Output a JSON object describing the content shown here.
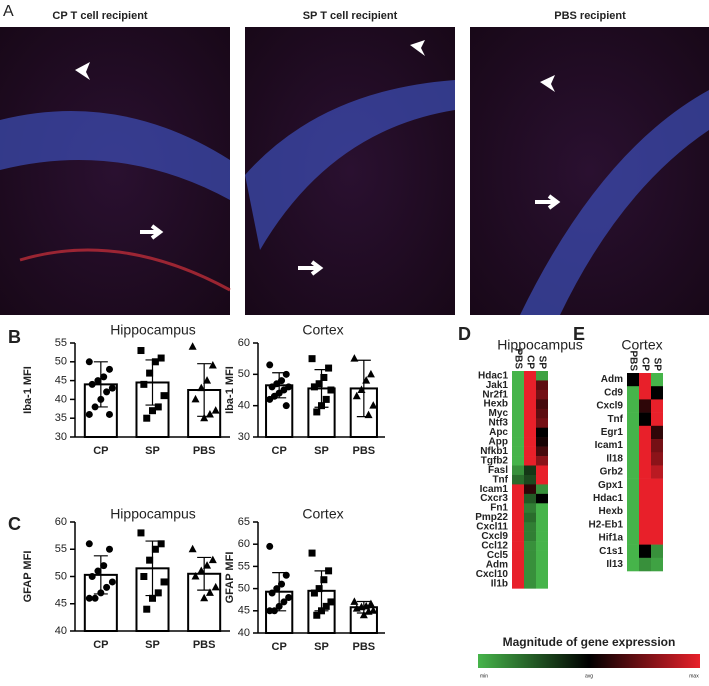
{
  "panel_labels": [
    "A",
    "B",
    "C",
    "D",
    "E"
  ],
  "images": [
    {
      "title": "CP T cell recipient"
    },
    {
      "title": "SP T cell recipient"
    },
    {
      "title": "PBS recipient"
    }
  ],
  "colorbar": {
    "title": "Magnitude of gene expression",
    "labels": [
      "min",
      "avg",
      "max"
    ]
  },
  "chart_data": [
    {
      "type": "bar",
      "title": "Hippocampus",
      "ylabel": "Iba-1 MFI",
      "categories": [
        "CP",
        "SP",
        "PBS"
      ],
      "values": [
        44,
        44.5,
        42.5
      ],
      "errors": [
        6,
        6,
        7
      ],
      "points": [
        [
          50,
          48,
          46,
          45,
          44,
          43,
          42,
          40,
          38,
          36,
          36
        ],
        [
          53,
          51,
          50,
          47,
          44,
          41,
          38,
          37,
          35
        ],
        [
          54,
          49,
          45,
          43,
          40,
          37,
          36,
          35
        ]
      ],
      "ylim": [
        30,
        55
      ],
      "yticks": [
        30,
        35,
        40,
        45,
        50,
        55
      ]
    },
    {
      "type": "bar",
      "title": "Cortex",
      "ylabel": "Iba-1 MFI",
      "categories": [
        "CP",
        "SP",
        "PBS"
      ],
      "values": [
        46.5,
        45.5,
        45.5
      ],
      "errors": [
        4,
        6,
        9
      ],
      "points": [
        [
          53,
          50,
          48,
          47,
          46,
          46,
          45,
          44,
          43,
          42,
          40
        ],
        [
          55,
          52,
          49,
          47,
          46,
          45,
          42,
          40,
          38
        ],
        [
          55,
          50,
          48,
          45,
          43,
          40,
          37
        ]
      ],
      "ylim": [
        30,
        60
      ],
      "yticks": [
        30,
        40,
        50,
        60
      ]
    },
    {
      "type": "bar",
      "title": "Hippocampus",
      "ylabel": "GFAP MFI",
      "categories": [
        "CP",
        "SP",
        "PBS"
      ],
      "values": [
        50.3,
        51.5,
        50.5
      ],
      "errors": [
        3.5,
        5,
        3
      ],
      "points": [
        [
          56,
          55,
          52,
          51,
          50,
          49,
          48,
          47,
          46,
          46
        ],
        [
          58,
          56,
          55,
          53,
          50,
          49,
          47,
          46,
          44
        ],
        [
          55,
          53,
          52,
          51,
          50,
          48,
          47,
          46
        ]
      ],
      "ylim": [
        40,
        60
      ],
      "yticks": [
        40,
        45,
        50,
        55,
        60
      ]
    },
    {
      "type": "bar",
      "title": "Cortex",
      "ylabel": "GFAP MFI",
      "categories": [
        "CP",
        "SP",
        "PBS"
      ],
      "values": [
        49.3,
        49.5,
        45.8
      ],
      "errors": [
        4.3,
        4.5,
        1.3
      ],
      "points": [
        [
          59.5,
          53,
          51,
          50,
          49,
          48,
          47,
          46,
          45,
          45
        ],
        [
          58,
          54,
          52,
          50,
          49,
          47,
          46,
          45,
          44
        ],
        [
          47,
          46.5,
          46,
          45.8,
          45.5,
          45,
          44.8,
          44
        ]
      ],
      "ylim": [
        40,
        65
      ],
      "yticks": [
        40,
        45,
        50,
        55,
        60,
        65
      ]
    },
    {
      "type": "heatmap",
      "title": "Hippocampus",
      "columns": [
        "PBS",
        "CP",
        "SP"
      ],
      "rows": [
        "Hdac1",
        "Jak1",
        "Nr2f1",
        "Hexb",
        "Myc",
        "Ntf3",
        "Apc",
        "App",
        "Nfkb1",
        "Tgfb2",
        "Fasl",
        "Tnf",
        "Icam1",
        "Cxcr3",
        "Fn1",
        "Pmp22",
        "Cxcl11",
        "Cxcl9",
        "Ccl12",
        "Ccl5",
        "Adm",
        "Cxcl10",
        "Il1b"
      ],
      "values": [
        [
          -1,
          1,
          -0.9
        ],
        [
          -1,
          1,
          0.4
        ],
        [
          -1,
          1,
          0.5
        ],
        [
          -1,
          1,
          0.3
        ],
        [
          -1,
          1,
          0.4
        ],
        [
          -1,
          1,
          0.5
        ],
        [
          -1,
          1,
          0
        ],
        [
          -1,
          1,
          0.1
        ],
        [
          -1,
          1,
          0.3
        ],
        [
          -1,
          1,
          0.6
        ],
        [
          -0.8,
          -0.3,
          1
        ],
        [
          -0.6,
          -0.4,
          1
        ],
        [
          1,
          0.2,
          -0.8
        ],
        [
          1,
          -0.5,
          0
        ],
        [
          1,
          -0.7,
          -1
        ],
        [
          1,
          -0.6,
          -1
        ],
        [
          1,
          -0.7,
          -1
        ],
        [
          1,
          -0.7,
          -1
        ],
        [
          1,
          -0.8,
          -1
        ],
        [
          1,
          -0.8,
          -1
        ],
        [
          1,
          -0.8,
          -1
        ],
        [
          1,
          -0.8,
          -1
        ],
        [
          1,
          -0.8,
          -1
        ]
      ],
      "vlim": [
        -1,
        1
      ],
      "colors": [
        "#46b44a",
        "#000000",
        "#e8202a"
      ]
    },
    {
      "type": "heatmap",
      "title": "Cortex",
      "columns": [
        "PBS",
        "CP",
        "SP"
      ],
      "rows": [
        "Adm",
        "Cd9",
        "Cxcl9",
        "Tnf",
        "Egr1",
        "Icam1",
        "Il18",
        "Grb2",
        "Gpx1",
        "Hdac1",
        "Hexb",
        "H2-Eb1",
        "Hif1a",
        "C1s1",
        "Il13"
      ],
      "values": [
        [
          0,
          1,
          -1
        ],
        [
          -1,
          1,
          0
        ],
        [
          -1,
          0.2,
          1
        ],
        [
          -1,
          0,
          1
        ],
        [
          -1,
          1,
          0.2
        ],
        [
          -1,
          1,
          0.5
        ],
        [
          -1,
          1,
          0.6
        ],
        [
          -1,
          1,
          0.8
        ],
        [
          -1,
          1,
          1
        ],
        [
          -1,
          1,
          1
        ],
        [
          -1,
          1,
          1
        ],
        [
          -1,
          1,
          1
        ],
        [
          -1,
          1,
          1
        ],
        [
          -1,
          0,
          -0.8
        ],
        [
          -1,
          -0.8,
          -0.9
        ]
      ],
      "vlim": [
        -1,
        1
      ],
      "colors": [
        "#46b44a",
        "#000000",
        "#e8202a"
      ]
    }
  ]
}
